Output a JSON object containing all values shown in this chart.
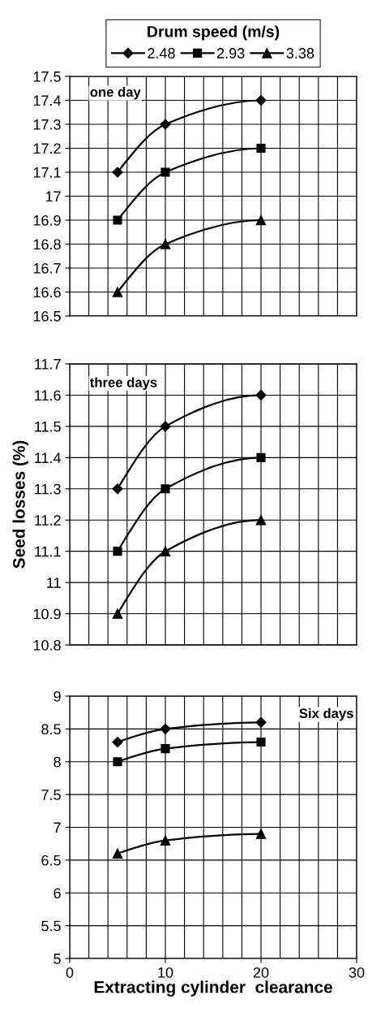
{
  "chart_data": [
    {
      "type": "line",
      "legend_title": "Drum speed (m/s)",
      "legend": "top",
      "annotations": [
        "one day"
      ],
      "xlim": [
        0,
        30
      ],
      "ylim": [
        16.5,
        17.5
      ],
      "yticks": [
        16.5,
        16.6,
        16.7,
        16.8,
        16.9,
        17,
        17.1,
        17.2,
        17.3,
        17.4,
        17.5
      ],
      "tick_labels": "y",
      "grid": true,
      "x": [
        5,
        10,
        20
      ],
      "line_style": "solid",
      "series": [
        {
          "name": "2.48",
          "color": "#000000",
          "marker": "diamond",
          "values": [
            17.1,
            17.3,
            17.4
          ]
        },
        {
          "name": "2.93",
          "color": "#000000",
          "marker": "square",
          "values": [
            16.9,
            17.1,
            17.2
          ]
        },
        {
          "name": "3.38",
          "color": "#000000",
          "marker": "triangle",
          "values": [
            16.6,
            16.8,
            16.9
          ]
        }
      ]
    },
    {
      "type": "line",
      "ylabel": "Seed losses (%)",
      "annotations": [
        "three days"
      ],
      "xlim": [
        0,
        30
      ],
      "ylim": [
        10.8,
        11.7
      ],
      "yticks": [
        10.8,
        10.9,
        11,
        11.1,
        11.2,
        11.3,
        11.4,
        11.5,
        11.6,
        11.7
      ],
      "tick_labels": "y",
      "grid": true,
      "x": [
        5,
        10,
        20
      ],
      "line_style": "solid",
      "series": [
        {
          "color": "#000000",
          "marker": "diamond",
          "values": [
            11.3,
            11.5,
            11.6
          ]
        },
        {
          "color": "#000000",
          "marker": "square",
          "values": [
            11.1,
            11.3,
            11.4
          ]
        },
        {
          "color": "#000000",
          "marker": "triangle",
          "values": [
            10.9,
            11.1,
            11.2
          ]
        }
      ]
    },
    {
      "type": "line",
      "xlabel": "Extracting cylinder  clearance",
      "annotations": [
        "Six days"
      ],
      "xlim": [
        0,
        30
      ],
      "xticks": [
        0,
        10,
        20,
        30
      ],
      "ylim": [
        5,
        9
      ],
      "yticks": [
        5,
        5.5,
        6,
        6.5,
        7,
        7.5,
        8,
        8.5,
        9
      ],
      "grid": true,
      "x": [
        5,
        10,
        20
      ],
      "line_style": "solid",
      "series": [
        {
          "color": "#000000",
          "marker": "diamond",
          "values": [
            8.3,
            8.5,
            8.6
          ]
        },
        {
          "color": "#000000",
          "marker": "square",
          "values": [
            8.0,
            8.2,
            8.3
          ]
        },
        {
          "color": "#000000",
          "marker": "triangle",
          "values": [
            6.6,
            6.8,
            6.9
          ]
        }
      ]
    }
  ]
}
